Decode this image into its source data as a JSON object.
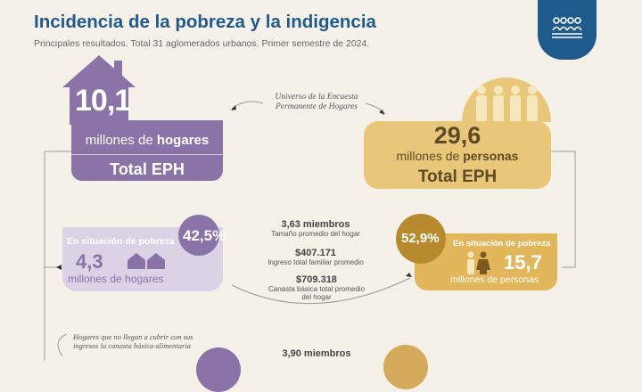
{
  "header": {
    "title": "Incidencia de la pobreza y la indigencia",
    "subtitle": "Principales resultados. Total 31 aglomerados urbanos. Primer semestre de 2024."
  },
  "logo": {
    "icon": "people-group-icon"
  },
  "households_total": {
    "number": "10,1",
    "line1_prefix": "millones de ",
    "line1_bold": "hogares",
    "line2": "Total EPH"
  },
  "universe_note": "Universo de la Encuesta Permanente de Hogares",
  "persons_total": {
    "number": "29,6",
    "line1_prefix": "millones de ",
    "line1_bold": "personas",
    "line2": "Total EPH"
  },
  "poverty_households": {
    "percent": "42,5%",
    "label": "En situación de pobreza",
    "number": "4,3",
    "units": "millones de hogares"
  },
  "poverty_persons": {
    "percent": "52,9%",
    "label": "En situación de pobreza",
    "number": "15,7",
    "units": "millones de personas"
  },
  "stats_poverty": [
    {
      "value": "3,63 miembros",
      "caption": "Tamaño promedio del hogar"
    },
    {
      "value": "$407.171",
      "caption": "Ingreso total familiar promedio"
    },
    {
      "value": "$709.318",
      "caption": "Canasta básica total promedio del hogar"
    }
  ],
  "indigence_note": "Hogares que no llegan a cubrir con sus ingresos la canasta básica alimentaria",
  "stats_indigence": [
    {
      "value": "3,90 miembros"
    }
  ],
  "colors": {
    "title_blue": "#1f5a8c",
    "purple": "#8a73a6",
    "purple_light": "#dcd2e6",
    "gold": "#e8c77a",
    "gold_dark": "#b88a2e",
    "background": "#f5f1e9"
  }
}
